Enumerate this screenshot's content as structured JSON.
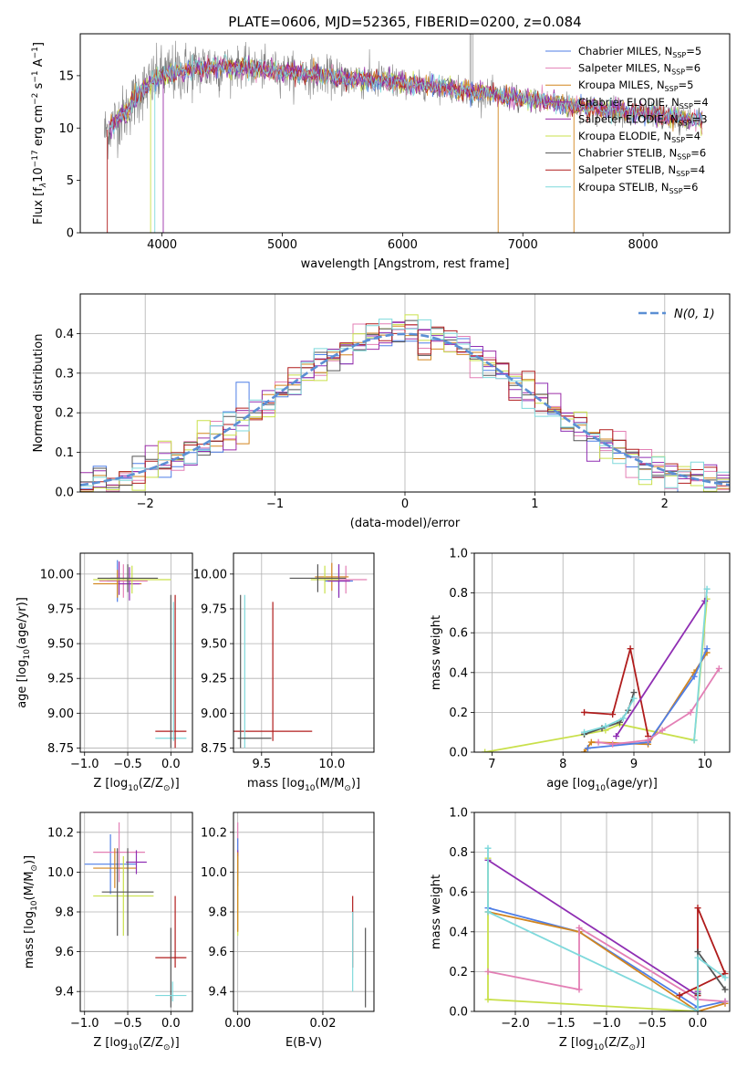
{
  "figure_title": "PLATE=0606, MJD=52365, FIBERID=0200, z=0.084",
  "colors": {
    "chabrier_miles": "#4f7ee6",
    "salpeter_miles": "#e37fb5",
    "kroupa_miles": "#d2851e",
    "chabrier_elodie": "#8f2eb3",
    "salpeter_elodie": "#9c2da8",
    "kroupa_elodie": "#c9e04b",
    "chabrier_stelib": "#555555",
    "salpeter_stelib": "#b01c1c",
    "kroupa_stelib": "#7fd9dc",
    "normal": "#5b8fd4",
    "grid": "#b0b0b0"
  },
  "chart_data": [
    {
      "id": "spectrum",
      "type": "line",
      "title": "PLATE=0606, MJD=52365, FIBERID=0200, z=0.084",
      "xlabel": "wavelength [Angstrom, rest frame]",
      "ylabel": "Flux [f",
      "ylabel_tail": "10",
      "ylabel_units": "erg cm",
      "xlim": [
        3320,
        8720
      ],
      "ylim": [
        0,
        19
      ],
      "xticks": [
        "4000",
        "5000",
        "6000",
        "7000",
        "8000"
      ],
      "yticks": [
        "0",
        "5",
        "10",
        "15"
      ],
      "grid": false,
      "legend_position": "top-right",
      "continuum": {
        "x": [
          3500,
          3600,
          3700,
          3800,
          3900,
          4000,
          4200,
          4500,
          5000,
          5500,
          6000,
          6500,
          7000,
          7500,
          8000,
          8500
        ],
        "y": [
          9.3,
          10.5,
          11.5,
          13.2,
          14.2,
          15.0,
          15.5,
          16.0,
          15.4,
          14.8,
          14.3,
          13.6,
          12.8,
          12.0,
          11.4,
          10.7
        ]
      },
      "series": [
        {
          "name": "Chabrier MILES, N",
          "nssp": "=5",
          "color_key": "chabrier_miles"
        },
        {
          "name": "Salpeter MILES, N",
          "nssp": "=6",
          "color_key": "salpeter_miles"
        },
        {
          "name": "Kroupa MILES, N",
          "nssp": "=5",
          "color_key": "kroupa_miles"
        },
        {
          "name": "Chabrier ELODIE, N",
          "nssp": "=4",
          "color_key": "chabrier_elodie"
        },
        {
          "name": "Salpeter ELODIE, N",
          "nssp": "=3",
          "color_key": "salpeter_elodie"
        },
        {
          "name": "Kroupa ELODIE, N",
          "nssp": "=4",
          "color_key": "kroupa_elodie"
        },
        {
          "name": "Chabrier STELIB, N",
          "nssp": "=6",
          "color_key": "chabrier_stelib"
        },
        {
          "name": "Salpeter STELIB, N",
          "nssp": "=4",
          "color_key": "salpeter_stelib"
        },
        {
          "name": "Kroupa STELIB, N",
          "nssp": "=6",
          "color_key": "kroupa_stelib"
        }
      ]
    },
    {
      "id": "residuals",
      "type": "line",
      "xlabel": "(data-model)/error",
      "ylabel": "Normed distribution",
      "xlim": [
        -2.5,
        2.5
      ],
      "ylim": [
        0,
        0.5
      ],
      "xticks": [
        "−2",
        "−1",
        "0",
        "1",
        "2"
      ],
      "yticks": [
        "0.0",
        "0.1",
        "0.2",
        "0.3",
        "0.4"
      ],
      "grid": true,
      "legend_position": "top-right",
      "legend_label": "N(0, 1)",
      "histogram_bins": [
        -2.5,
        2.5,
        50
      ],
      "reference_curve": "normal pdf, mean 0, sigma 1"
    },
    {
      "id": "age_vs_Z",
      "type": "scatter",
      "xlabel": "Z [log",
      "ylabel": "age  [log",
      "xlim": [
        -1.05,
        0.25
      ],
      "ylim": [
        8.72,
        10.15
      ],
      "xticks": [
        "−1.0",
        "−0.5",
        "0.0"
      ],
      "yticks": [
        "8.75",
        "9.00",
        "9.25",
        "9.50",
        "9.75",
        "10.00"
      ],
      "grid": true,
      "points": [
        {
          "x": -0.62,
          "y": 9.95,
          "xerr": 0.12,
          "yerr": 0.15,
          "color_key": "chabrier_miles"
        },
        {
          "x": -0.55,
          "y": 9.95,
          "xerr": 0.28,
          "yerr": 0.12,
          "color_key": "salpeter_miles"
        },
        {
          "x": -0.62,
          "y": 9.93,
          "xerr": 0.28,
          "yerr": 0.1,
          "color_key": "kroupa_miles"
        },
        {
          "x": -0.48,
          "y": 9.93,
          "xerr": 0.12,
          "yerr": 0.12,
          "color_key": "chabrier_elodie"
        },
        {
          "x": -0.6,
          "y": 9.97,
          "xerr": 0.1,
          "yerr": 0.12,
          "color_key": "salpeter_elodie"
        },
        {
          "x": -0.45,
          "y": 9.96,
          "xerr": 0.45,
          "yerr": 0.1,
          "color_key": "kroupa_elodie"
        },
        {
          "x": -0.5,
          "y": 9.97,
          "xerr": 0.35,
          "yerr": 0.1,
          "color_key": "chabrier_stelib"
        },
        {
          "x": 0.0,
          "y": 8.87,
          "xerr": 0.18,
          "yerr": 0.0,
          "color_key": "salpeter_stelib"
        },
        {
          "x": 0.0,
          "y": 8.82,
          "xerr": 0.18,
          "yerr": 0.0,
          "color_key": "kroupa_stelib"
        },
        {
          "x": 0.0,
          "y": 9.3,
          "xerr": 0.0,
          "yerr": 0.55,
          "color_key": "chabrier_stelib"
        },
        {
          "x": 0.05,
          "y": 9.3,
          "xerr": 0.0,
          "yerr": 0.55,
          "color_key": "salpeter_stelib"
        },
        {
          "x": 0.03,
          "y": 9.3,
          "xerr": 0.0,
          "yerr": 0.5,
          "color_key": "kroupa_stelib"
        }
      ]
    },
    {
      "id": "age_vs_mass",
      "type": "scatter",
      "xlabel": "mass [log",
      "xlim": [
        9.3,
        10.3
      ],
      "ylim": [
        8.72,
        10.15
      ],
      "xticks": [
        "9.5",
        "10.0"
      ],
      "yticks": [
        "8.75",
        "9.00",
        "9.25",
        "9.50",
        "9.75",
        "10.00"
      ],
      "grid": true,
      "points": [
        {
          "x": 10.05,
          "y": 9.95,
          "xerr": 0.1,
          "yerr": 0.12,
          "color_key": "chabrier_miles"
        },
        {
          "x": 10.1,
          "y": 9.96,
          "xerr": 0.15,
          "yerr": 0.1,
          "color_key": "salpeter_miles"
        },
        {
          "x": 10.0,
          "y": 9.98,
          "xerr": 0.12,
          "yerr": 0.1,
          "color_key": "kroupa_miles"
        },
        {
          "x": 10.05,
          "y": 9.95,
          "xerr": 0.08,
          "yerr": 0.12,
          "color_key": "chabrier_elodie"
        },
        {
          "x": 9.95,
          "y": 9.96,
          "xerr": 0.1,
          "yerr": 0.1,
          "color_key": "kroupa_elodie"
        },
        {
          "x": 9.9,
          "y": 9.97,
          "xerr": 0.2,
          "yerr": 0.1,
          "color_key": "chabrier_stelib"
        },
        {
          "x": 9.58,
          "y": 9.3,
          "xerr": 0.0,
          "yerr": 0.5,
          "color_key": "salpeter_stelib"
        },
        {
          "x": 9.58,
          "y": 8.87,
          "xerr": 0.28,
          "yerr": 0.0,
          "color_key": "salpeter_stelib"
        },
        {
          "x": 9.38,
          "y": 9.3,
          "xerr": 0.0,
          "yerr": 0.55,
          "color_key": "kroupa_stelib"
        },
        {
          "x": 9.35,
          "y": 9.3,
          "xerr": 0.0,
          "yerr": 0.55,
          "color_key": "chabrier_stelib"
        },
        {
          "x": 9.45,
          "y": 8.82,
          "xerr": 0.12,
          "yerr": 0.0,
          "color_key": "chabrier_stelib"
        }
      ]
    },
    {
      "id": "massweight_vs_age",
      "type": "line",
      "xlabel": "age  [log",
      "ylabel": "mass weight",
      "xlim": [
        6.75,
        10.35
      ],
      "ylim": [
        0,
        1
      ],
      "xticks": [
        "7",
        "8",
        "9",
        "10"
      ],
      "yticks": [
        "0.0",
        "0.2",
        "0.4",
        "0.6",
        "0.8",
        "1.0"
      ],
      "grid": true,
      "series": [
        {
          "color_key": "kroupa_elodie",
          "x": [
            6.9,
            8.3,
            8.6,
            8.8,
            9.85,
            10.03
          ],
          "y": [
            0.0,
            0.09,
            0.11,
            0.14,
            0.06,
            0.77
          ]
        },
        {
          "color_key": "chabrier_stelib",
          "x": [
            8.3,
            8.55,
            8.8,
            8.92,
            9.0
          ],
          "y": [
            0.09,
            0.12,
            0.15,
            0.21,
            0.3
          ]
        },
        {
          "color_key": "kroupa_stelib",
          "x": [
            8.3,
            8.6,
            8.85,
            9.0
          ],
          "y": [
            0.1,
            0.13,
            0.17,
            0.27
          ]
        },
        {
          "color_key": "salpeter_stelib",
          "x": [
            8.3,
            8.7,
            8.95,
            9.2
          ],
          "y": [
            0.2,
            0.19,
            0.52,
            0.08
          ]
        },
        {
          "color_key": "chabrier_elodie",
          "x": [
            8.75,
            10.0
          ],
          "y": [
            0.08,
            0.76
          ]
        },
        {
          "color_key": "kroupa_miles",
          "x": [
            8.3,
            8.4,
            9.2,
            9.85,
            10.03
          ],
          "y": [
            0.0,
            0.05,
            0.04,
            0.4,
            0.5
          ]
        },
        {
          "color_key": "chabrier_miles",
          "x": [
            8.35,
            9.2,
            9.85,
            10.03
          ],
          "y": [
            0.02,
            0.05,
            0.38,
            0.52
          ]
        },
        {
          "color_key": "salpeter_miles",
          "x": [
            8.5,
            8.7,
            9.2,
            9.4,
            9.8,
            10.2
          ],
          "y": [
            0.05,
            0.04,
            0.06,
            0.11,
            0.2,
            0.42
          ]
        },
        {
          "color_key": "kroupa_stelib",
          "x": [
            9.85,
            10.03
          ],
          "y": [
            0.06,
            0.82
          ]
        }
      ]
    },
    {
      "id": "mass_vs_Z",
      "type": "scatter",
      "xlabel": "Z [log",
      "ylabel": "mass [log",
      "xlim": [
        -1.05,
        0.25
      ],
      "ylim": [
        9.3,
        10.3
      ],
      "xticks": [
        "−1.0",
        "−0.5",
        "0.0"
      ],
      "yticks": [
        "9.4",
        "9.6",
        "9.8",
        "10.0",
        "10.2"
      ],
      "grid": true,
      "points": [
        {
          "x": -0.7,
          "y": 10.04,
          "xerr": 0.3,
          "yerr": 0.15,
          "color_key": "chabrier_miles"
        },
        {
          "x": -0.6,
          "y": 10.1,
          "xerr": 0.3,
          "yerr": 0.15,
          "color_key": "salpeter_miles"
        },
        {
          "x": -0.65,
          "y": 10.02,
          "xerr": 0.25,
          "yerr": 0.1,
          "color_key": "kroupa_miles"
        },
        {
          "x": -0.4,
          "y": 10.05,
          "xerr": 0.12,
          "yerr": 0.06,
          "color_key": "chabrier_elodie"
        },
        {
          "x": -0.55,
          "y": 9.88,
          "xerr": 0.35,
          "yerr": 0.2,
          "color_key": "kroupa_elodie"
        },
        {
          "x": -0.5,
          "y": 9.9,
          "xerr": 0.3,
          "yerr": 0.22,
          "color_key": "chabrier_stelib"
        },
        {
          "x": -0.62,
          "y": 9.9,
          "xerr": 0.0,
          "yerr": 0.22,
          "color_key": "chabrier_stelib"
        },
        {
          "x": 0.0,
          "y": 9.57,
          "xerr": 0.18,
          "yerr": 0.0,
          "color_key": "salpeter_stelib"
        },
        {
          "x": 0.05,
          "y": 9.7,
          "xerr": 0.0,
          "yerr": 0.18,
          "color_key": "salpeter_stelib"
        },
        {
          "x": 0.0,
          "y": 9.52,
          "xerr": 0.0,
          "yerr": 0.2,
          "color_key": "chabrier_stelib"
        },
        {
          "x": 0.0,
          "y": 9.38,
          "xerr": 0.18,
          "yerr": 0.0,
          "color_key": "kroupa_stelib"
        },
        {
          "x": 0.02,
          "y": 9.4,
          "xerr": 0.0,
          "yerr": 0.05,
          "color_key": "kroupa_stelib"
        }
      ]
    },
    {
      "id": "mass_vs_EBV",
      "type": "scatter",
      "xlabel": "E(B-V)",
      "xlim": [
        -0.001,
        0.032
      ],
      "ylim": [
        9.3,
        10.3
      ],
      "xticks": [
        "0.00",
        "0.02"
      ],
      "yticks": [
        "9.4",
        "9.6",
        "9.8",
        "10.0",
        "10.2"
      ],
      "grid": true,
      "points": [
        {
          "x": 0.0,
          "y": 10.1,
          "xerr": 0.0,
          "yerr": 0.15,
          "color_key": "salpeter_miles"
        },
        {
          "x": 0.0,
          "y": 10.05,
          "xerr": 0.0,
          "yerr": 0.12,
          "color_key": "chabrier_miles"
        },
        {
          "x": 0.0,
          "y": 10.05,
          "xerr": 0.0,
          "yerr": 0.06,
          "color_key": "chabrier_elodie"
        },
        {
          "x": 0.0,
          "y": 9.88,
          "xerr": 0.0,
          "yerr": 0.2,
          "color_key": "kroupa_elodie"
        },
        {
          "x": 0.0,
          "y": 9.9,
          "xerr": 0.0,
          "yerr": 0.2,
          "color_key": "kroupa_miles"
        },
        {
          "x": 0.027,
          "y": 9.7,
          "xerr": 0.0,
          "yerr": 0.18,
          "color_key": "salpeter_stelib"
        },
        {
          "x": 0.027,
          "y": 9.6,
          "xerr": 0.0,
          "yerr": 0.2,
          "color_key": "kroupa_stelib"
        },
        {
          "x": 0.03,
          "y": 9.52,
          "xerr": 0.0,
          "yerr": 0.2,
          "color_key": "chabrier_stelib"
        }
      ]
    },
    {
      "id": "massweight_vs_Z",
      "type": "line",
      "xlabel": "Z [log",
      "ylabel": "mass weight",
      "xlim": [
        -2.45,
        0.35
      ],
      "ylim": [
        0,
        1
      ],
      "xticks": [
        "−2.0",
        "−1.5",
        "−1.0",
        "−0.5",
        "0.0"
      ],
      "yticks": [
        "0.0",
        "0.2",
        "0.4",
        "0.6",
        "0.8",
        "1.0"
      ],
      "grid": true,
      "series": [
        {
          "color_key": "kroupa_elodie",
          "x": [
            -2.3,
            -2.3,
            0.0,
            0.0,
            0.0
          ],
          "y": [
            0.77,
            0.06,
            0.0,
            0.09,
            0.11
          ]
        },
        {
          "color_key": "chabrier_miles",
          "x": [
            -2.3,
            -1.3,
            0.0,
            0.3
          ],
          "y": [
            0.52,
            0.4,
            0.02,
            0.05
          ]
        },
        {
          "color_key": "kroupa_miles",
          "x": [
            -2.3,
            -1.3,
            0.0,
            0.3
          ],
          "y": [
            0.5,
            0.4,
            0.0,
            0.04
          ]
        },
        {
          "color_key": "salpeter_miles",
          "x": [
            -2.3,
            -1.3,
            -1.3,
            0.0,
            0.3
          ],
          "y": [
            0.2,
            0.11,
            0.42,
            0.06,
            0.05
          ]
        },
        {
          "color_key": "chabrier_elodie",
          "x": [
            -2.3,
            0.0,
            0.0
          ],
          "y": [
            0.76,
            0.08,
            0.1
          ]
        },
        {
          "color_key": "salpeter_stelib",
          "x": [
            0.0,
            0.0,
            0.3,
            -0.2
          ],
          "y": [
            0.08,
            0.52,
            0.19,
            0.08
          ]
        },
        {
          "color_key": "chabrier_stelib",
          "x": [
            0.0,
            0.0,
            0.3
          ],
          "y": [
            0.09,
            0.3,
            0.11
          ]
        },
        {
          "color_key": "kroupa_stelib",
          "x": [
            -2.3,
            -2.3,
            0.0,
            0.0,
            0.3
          ],
          "y": [
            0.82,
            0.5,
            0.0,
            0.27,
            0.17
          ]
        }
      ]
    }
  ]
}
